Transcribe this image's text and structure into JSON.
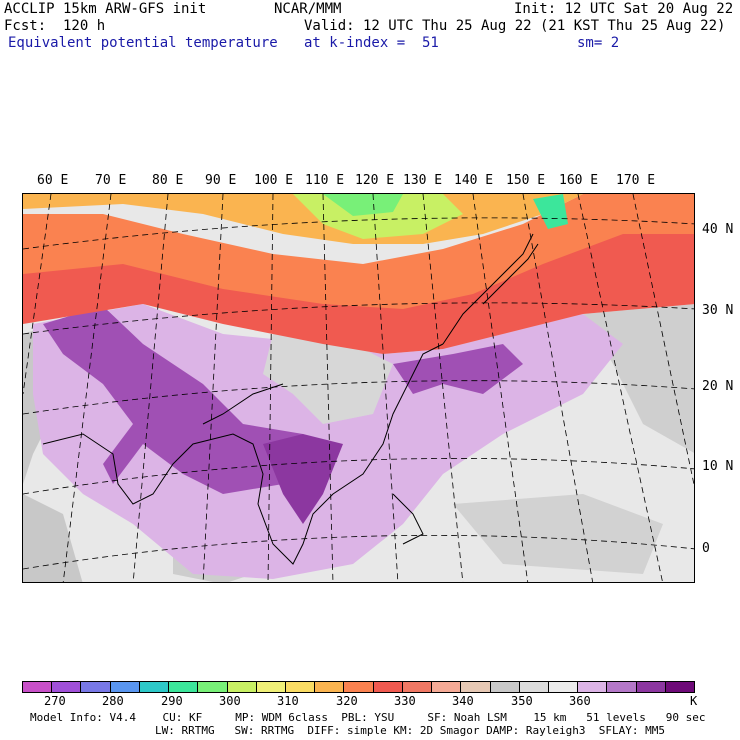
{
  "header": {
    "model": "ACCLIP 15km ARW-GFS init",
    "fcst": "Fcst:  120 h",
    "field": "Equivalent potential temperature",
    "org": "NCAR/MMM",
    "init": "Init: 12 UTC Sat 20 Aug 22",
    "valid": "Valid: 12 UTC Thu 25 Aug 22 (21 KST Thu 25 Aug 22)",
    "level": "at k-index =  51",
    "smooth": "sm= 2"
  },
  "lon_labels": [
    "60 E",
    "70 E",
    "80 E",
    "90 E",
    "100 E",
    "110 E",
    "120 E",
    "130 E",
    "140 E",
    "150 E",
    "160 E",
    "170 E"
  ],
  "lat_labels": [
    "40 N",
    "30 N",
    "20 N",
    "10 N",
    "0"
  ],
  "colorbar": {
    "colors": [
      "#c850c8",
      "#a050d8",
      "#7878e6",
      "#5a96f0",
      "#2dc8c8",
      "#3ce69b",
      "#78f078",
      "#c8f064",
      "#f0f078",
      "#fadc64",
      "#fab450",
      "#fa8250",
      "#f05a50",
      "#f07864",
      "#f5aa96",
      "#e6c8b4",
      "#c8c8c8",
      "#dcdcdc",
      "#ebebeb",
      "#dcb4e6",
      "#b478c8",
      "#8c37a0",
      "#6e0a78"
    ],
    "ticks": [
      "270",
      "280",
      "290",
      "300",
      "310",
      "320",
      "330",
      "340",
      "350",
      "360"
    ],
    "unit": "K"
  },
  "footer": {
    "line1": "Model Info: V4.4    CU: KF     MP: WDM 6class  PBL: YSU     SF: Noah LSM    15 km   51 levels   90 sec",
    "line2": "LW: RRTMG   SW: RRTMG  DIFF: simple KM: 2D Smagor DAMP: Rayleigh3  SFLAY: MM5"
  }
}
